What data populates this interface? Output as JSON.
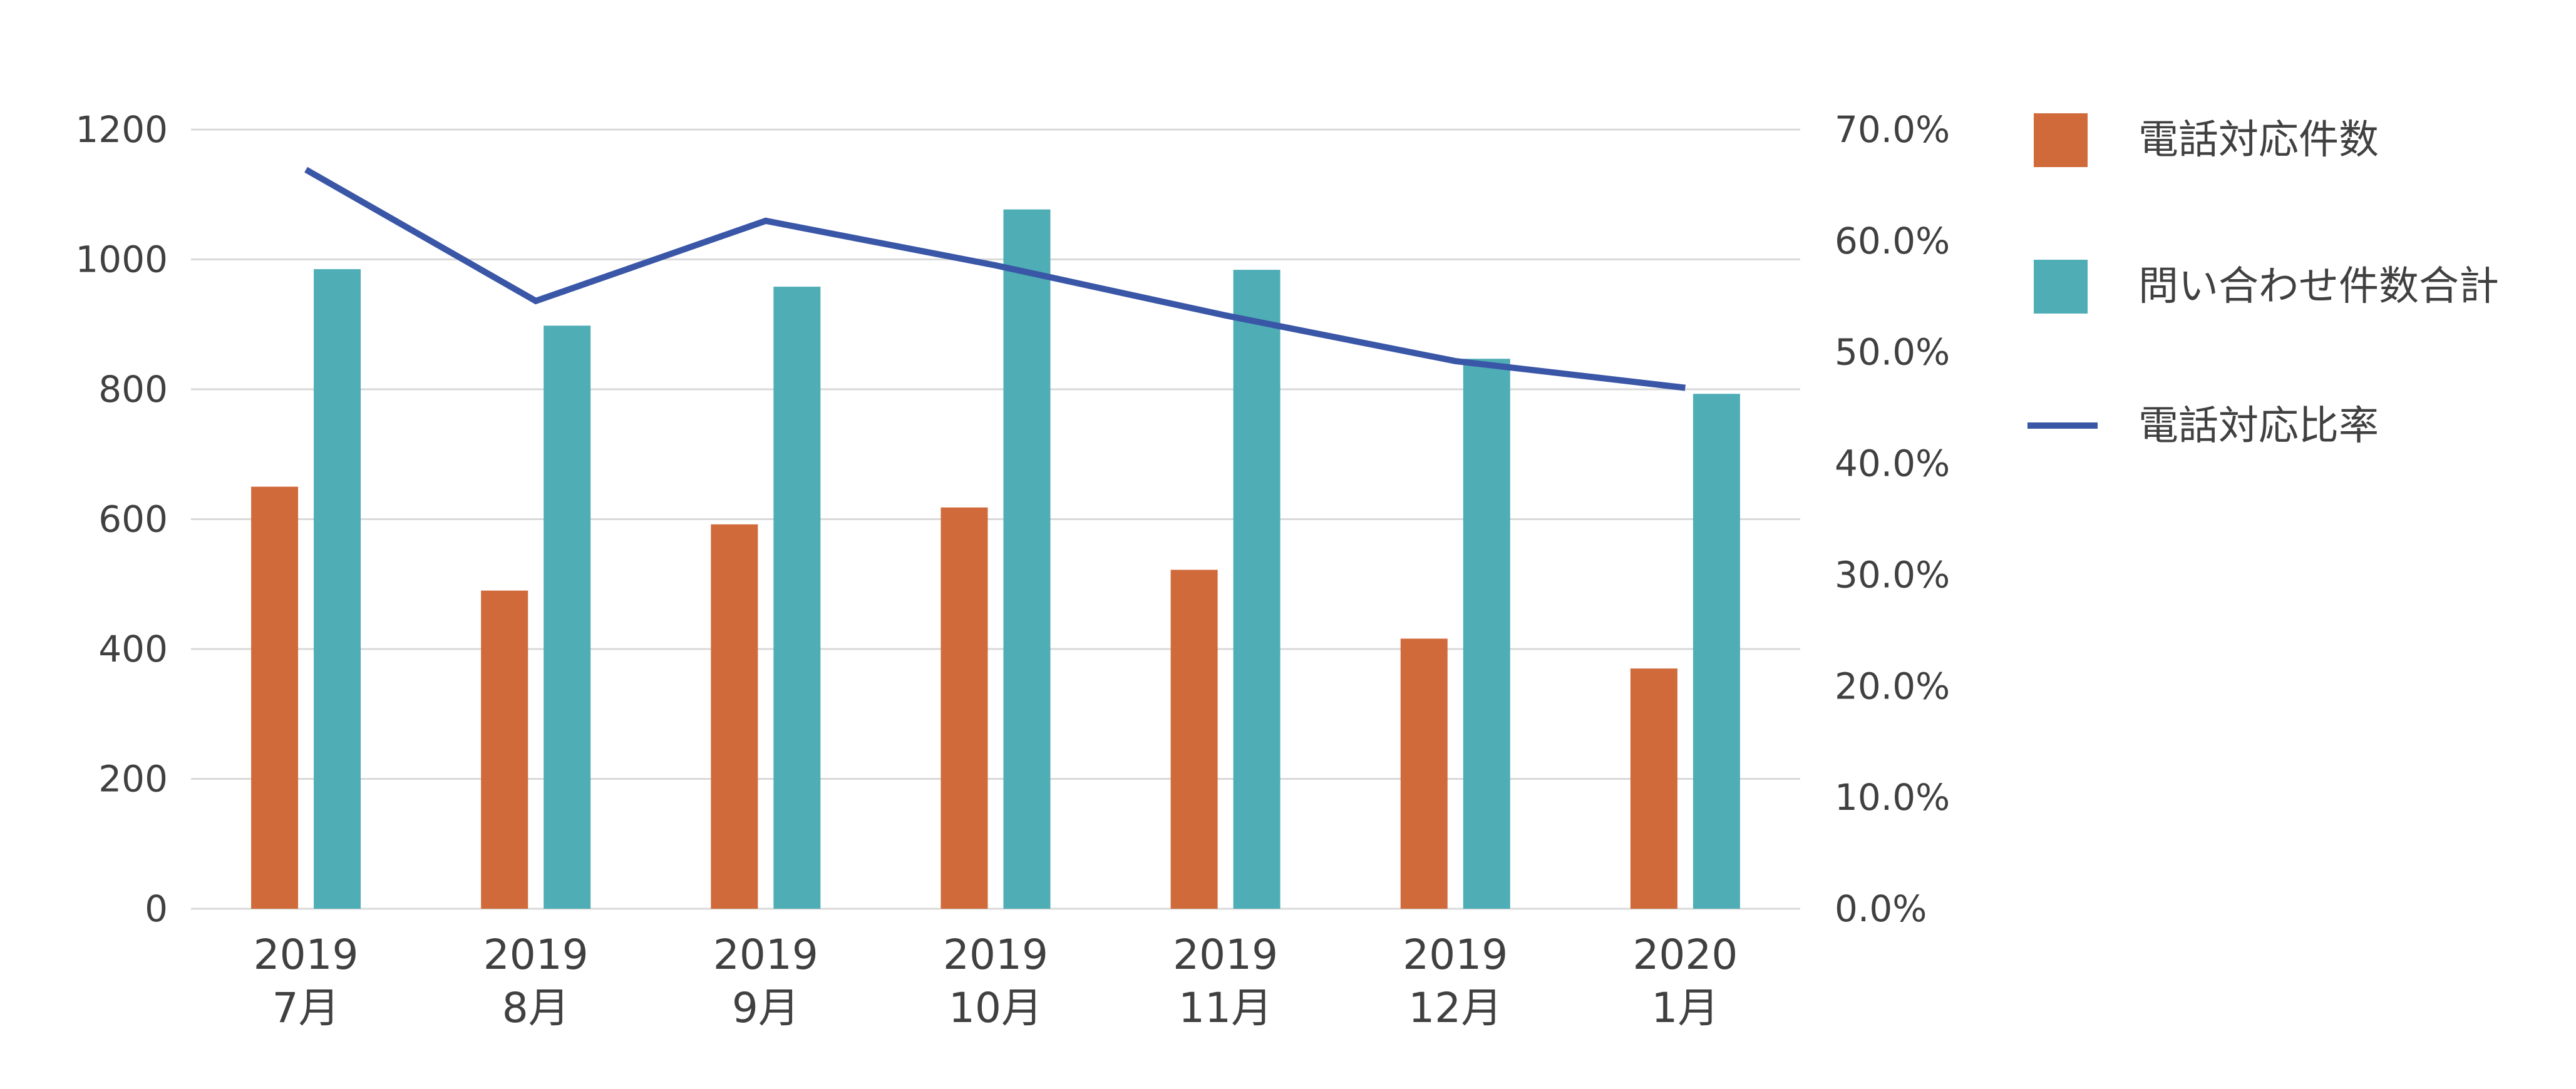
{
  "chart_data": {
    "type": "bar",
    "categories": [
      [
        "2019",
        "7月"
      ],
      [
        "2019",
        "8月"
      ],
      [
        "2019",
        "9月"
      ],
      [
        "2019",
        "10月"
      ],
      [
        "2019",
        "11月"
      ],
      [
        "2019",
        "12月"
      ],
      [
        "2020",
        "1月"
      ]
    ],
    "series": [
      {
        "name": "電話対応件数",
        "type": "bar",
        "axis": "left",
        "color": "#d06a3a",
        "values": [
          650,
          490,
          592,
          618,
          522,
          416,
          370
        ]
      },
      {
        "name": "問い合わせ件数合計",
        "type": "bar",
        "axis": "left",
        "color": "#4fadb6",
        "values": [
          985,
          898,
          958,
          1077,
          984,
          847,
          793
        ]
      },
      {
        "name": "電話対応比率",
        "type": "line",
        "axis": "right",
        "color": "#3a56a6",
        "values": [
          66.4,
          54.6,
          61.8,
          57.8,
          53.3,
          49.2,
          46.8
        ]
      }
    ],
    "y_left": {
      "min": 0,
      "max": 1200,
      "step": 200,
      "ticks": [
        "0",
        "200",
        "400",
        "600",
        "800",
        "1000",
        "1200"
      ]
    },
    "y_right": {
      "min": 0,
      "max": 70,
      "step": 10,
      "ticks": [
        "0.0%",
        "10.0%",
        "20.0%",
        "30.0%",
        "40.0%",
        "50.0%",
        "60.0%",
        "70.0%"
      ]
    },
    "grid": true,
    "legend_position": "right",
    "title": "",
    "xlabel": "",
    "ylabel": ""
  }
}
